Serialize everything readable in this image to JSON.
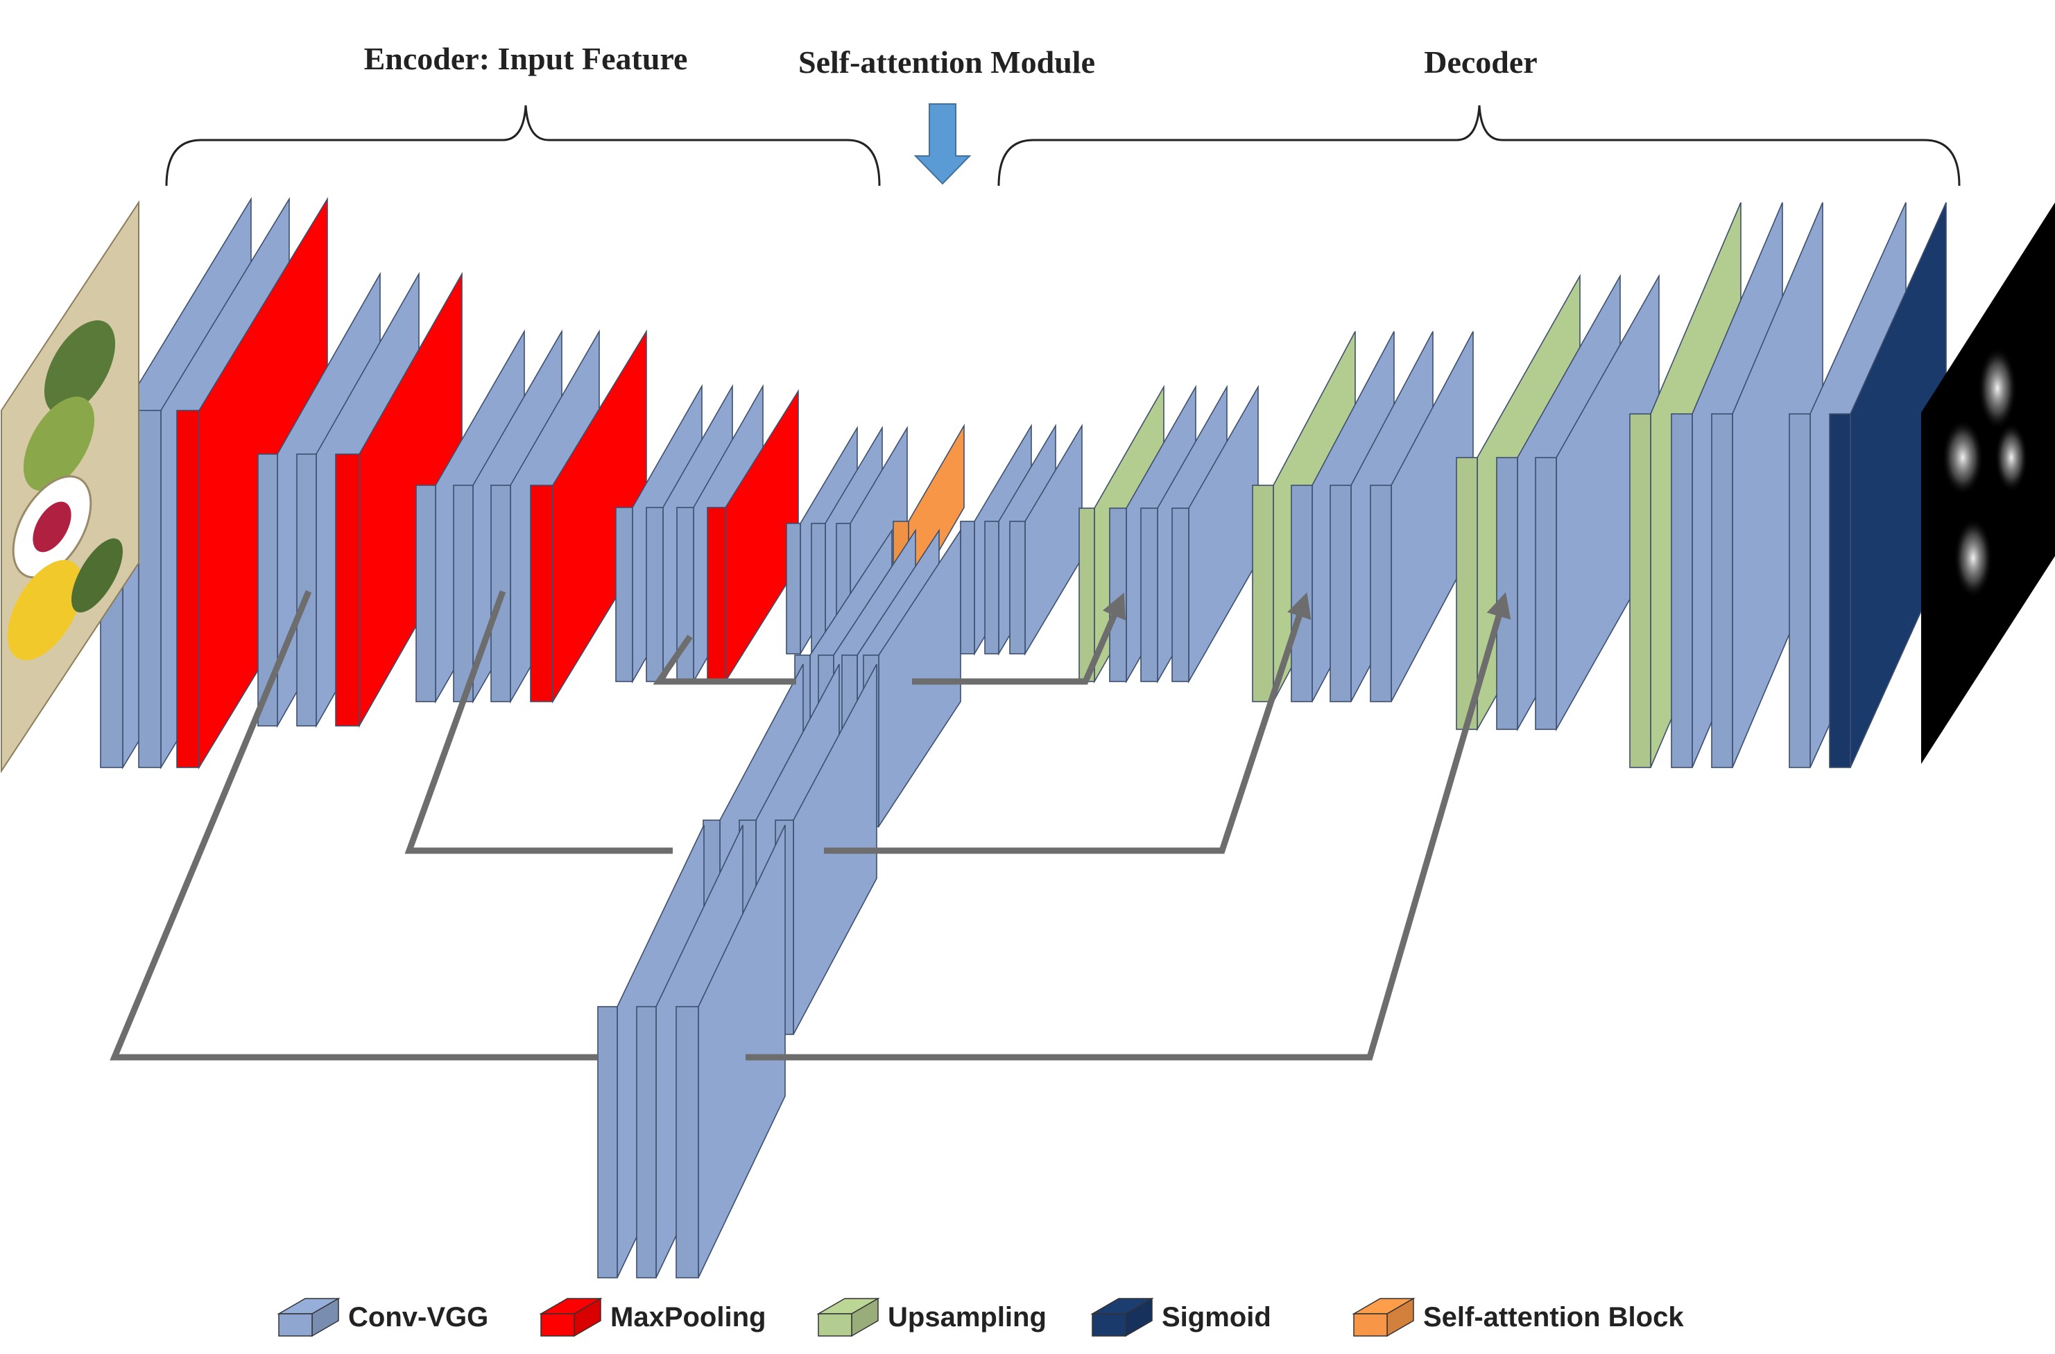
{
  "sections": {
    "encoder": "Encoder:  Input Feature",
    "attention": "Self-attention Module",
    "decoder": "Decoder"
  },
  "legend": [
    {
      "label": "Conv-VGG",
      "color": "#8ea6d0"
    },
    {
      "label": "MaxPooling",
      "color": "#ff0000"
    },
    {
      "label": "Upsampling",
      "color": "#b3cc8f"
    },
    {
      "label": "Sigmoid",
      "color": "#1a3a6b"
    },
    {
      "label": "Self-attention Block",
      "color": "#f79646"
    }
  ],
  "colors": {
    "conv": "#8ea6d0",
    "maxpool": "#ff0000",
    "upsample": "#b3cc8f",
    "sigmoid": "#1a3a6b",
    "attention": "#f79646",
    "arrow": "#5b9bd5",
    "skip": "#6d6d6d"
  },
  "images": {
    "input": "food-plate-photo-icon",
    "output": "saliency-map-icon"
  }
}
